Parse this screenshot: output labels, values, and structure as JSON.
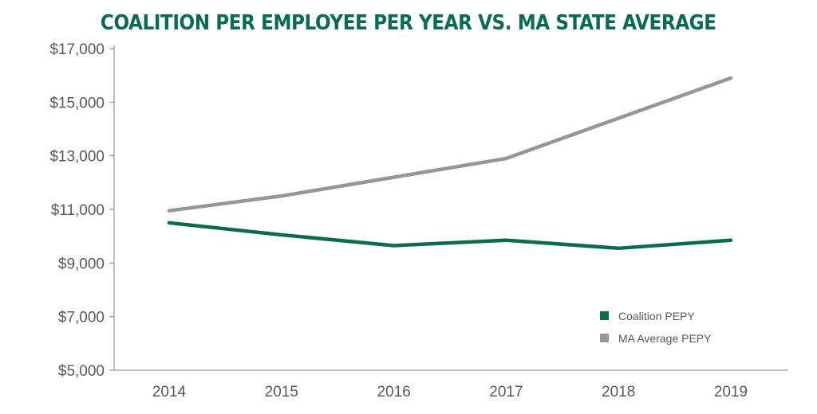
{
  "chart_data": {
    "type": "line",
    "title": "COALITION PER EMPLOYEE PER YEAR VS. MA STATE AVERAGE",
    "xlabel": "",
    "ylabel": "",
    "categories": [
      "2014",
      "2015",
      "2016",
      "2017",
      "2018",
      "2019"
    ],
    "ylim": [
      5000,
      17000
    ],
    "yticks": [
      5000,
      7000,
      9000,
      11000,
      13000,
      15000,
      17000
    ],
    "ytick_labels": [
      "$5,000",
      "$7,000",
      "$9,000",
      "$11,000",
      "$13,000",
      "$15,000",
      "$17,000"
    ],
    "grid": false,
    "legend_position": "bottom-right",
    "series": [
      {
        "name": "Coalition PEPY",
        "color": "#0b6b50",
        "values": [
          10500,
          10050,
          9650,
          9850,
          9550,
          9850
        ]
      },
      {
        "name": "MA Average PEPY",
        "color": "#969696",
        "values": [
          10950,
          11500,
          12200,
          12900,
          14400,
          15900
        ]
      }
    ]
  }
}
